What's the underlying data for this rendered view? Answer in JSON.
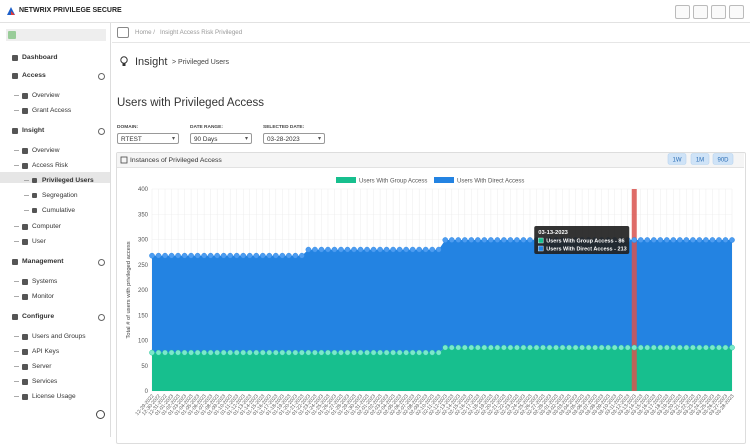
{
  "header": {
    "app_name": "NETWRIX PRIVILEGE SECURE"
  },
  "sidebar": {
    "items": [
      "Dashboard",
      "Access",
      "Overview",
      "Grant Access",
      "Insight",
      "Overview",
      "Access Risk",
      "Privileged Users",
      "Segregation",
      "Cumulative",
      "Computer",
      "User",
      "Management",
      "Systems",
      "Monitor",
      "Configure",
      "Users and Groups",
      "API Keys",
      "Server",
      "Services",
      "License Usage"
    ]
  },
  "breadcrumb": [
    "Home /",
    "Insight Access Risk Privileged"
  ],
  "page": {
    "heading": "Insight",
    "subheading": "> Privileged Users",
    "section_title": "Users with Privileged Access"
  },
  "filters": [
    {
      "label": "DOMAIN:",
      "value": "RTEST"
    },
    {
      "label": "DATE RANGE:",
      "value": "90 Days"
    },
    {
      "label": "SELECTED DATE:",
      "value": "03-28-2023"
    }
  ],
  "chart_data": {
    "type": "stacked-area",
    "title": "Instances of Privileged Access",
    "range_buttons": [
      "1W",
      "1M",
      "90D"
    ],
    "y_label": "Total # of users with privileged access",
    "ylim": [
      0,
      400
    ],
    "yticks": [
      0,
      50,
      100,
      150,
      200,
      250,
      300,
      350,
      400
    ],
    "categories": [
      "12-29-2022",
      "12-30-2022",
      "12-31-2022",
      "01-01-2023",
      "01-02-2023",
      "01-03-2023",
      "01-04-2023",
      "01-05-2023",
      "01-06-2023",
      "01-07-2023",
      "01-08-2023",
      "01-09-2023",
      "01-10-2023",
      "01-11-2023",
      "01-12-2023",
      "01-13-2023",
      "01-14-2023",
      "01-15-2023",
      "01-16-2023",
      "01-17-2023",
      "01-18-2023",
      "01-19-2023",
      "01-20-2023",
      "01-21-2023",
      "01-22-2023",
      "01-23-2023",
      "01-24-2023",
      "01-25-2023",
      "01-26-2023",
      "01-27-2023",
      "01-28-2023",
      "01-29-2023",
      "01-30-2023",
      "01-31-2023",
      "02-01-2023",
      "02-02-2023",
      "02-03-2023",
      "02-04-2023",
      "02-05-2023",
      "02-06-2023",
      "02-07-2023",
      "02-08-2023",
      "02-09-2023",
      "02-10-2023",
      "02-11-2023",
      "02-12-2023",
      "02-13-2023",
      "02-14-2023",
      "02-15-2023",
      "02-16-2023",
      "02-17-2023",
      "02-18-2023",
      "02-19-2023",
      "02-20-2023",
      "02-21-2023",
      "02-22-2023",
      "02-23-2023",
      "02-24-2023",
      "02-25-2023",
      "02-26-2023",
      "02-27-2023",
      "02-28-2023",
      "03-01-2023",
      "03-02-2023",
      "03-03-2023",
      "03-04-2023",
      "03-05-2023",
      "03-06-2023",
      "03-07-2023",
      "03-08-2023",
      "03-09-2023",
      "03-10-2023",
      "03-11-2023",
      "03-12-2023",
      "03-13-2023",
      "03-14-2023",
      "03-15-2023",
      "03-16-2023",
      "03-17-2023",
      "03-18-2023",
      "03-19-2023",
      "03-20-2023",
      "03-21-2023",
      "03-22-2023",
      "03-23-2023",
      "03-24-2023",
      "03-25-2023",
      "03-26-2023",
      "03-27-2023",
      "03-28-2023"
    ],
    "series": [
      {
        "name": "Users With Group Access",
        "color": "#17bf8e",
        "dot_color": "#7be8cb",
        "values": [
          76,
          76,
          76,
          76,
          76,
          76,
          76,
          76,
          76,
          76,
          76,
          76,
          76,
          76,
          76,
          76,
          76,
          76,
          76,
          76,
          76,
          76,
          76,
          76,
          76,
          76,
          76,
          76,
          76,
          76,
          76,
          76,
          76,
          76,
          76,
          76,
          76,
          76,
          76,
          76,
          76,
          76,
          76,
          76,
          76,
          86,
          86,
          86,
          86,
          86,
          86,
          86,
          86,
          86,
          86,
          86,
          86,
          86,
          86,
          86,
          86,
          86,
          86,
          86,
          86,
          86,
          86,
          86,
          86,
          86,
          86,
          86,
          86,
          86,
          86,
          86,
          86,
          86,
          86,
          86,
          86,
          86,
          86,
          86,
          86,
          86,
          86,
          86,
          86,
          86
        ]
      },
      {
        "name": "Users With Direct Access",
        "color": "#2383e2",
        "dot_color": "#4d9cf0",
        "values": [
          192,
          192,
          192,
          192,
          192,
          192,
          192,
          192,
          192,
          192,
          192,
          192,
          192,
          192,
          192,
          192,
          192,
          192,
          192,
          192,
          192,
          192,
          192,
          192,
          204,
          204,
          204,
          204,
          204,
          204,
          204,
          204,
          204,
          204,
          204,
          204,
          204,
          204,
          204,
          204,
          204,
          204,
          204,
          204,
          204,
          213,
          213,
          213,
          213,
          213,
          213,
          213,
          213,
          213,
          213,
          213,
          213,
          213,
          213,
          213,
          213,
          213,
          213,
          213,
          213,
          213,
          213,
          213,
          213,
          213,
          213,
          213,
          213,
          213,
          213,
          213,
          213,
          213,
          213,
          213,
          213,
          213,
          213,
          213,
          213,
          213,
          213,
          213,
          213,
          213
        ]
      }
    ],
    "hover_index": 74,
    "hover_color": "#d9534f",
    "tooltip": {
      "title": "03-13-2023",
      "lines": [
        "Users With Group Access - 86",
        "Users With Direct Access - 213"
      ]
    }
  }
}
